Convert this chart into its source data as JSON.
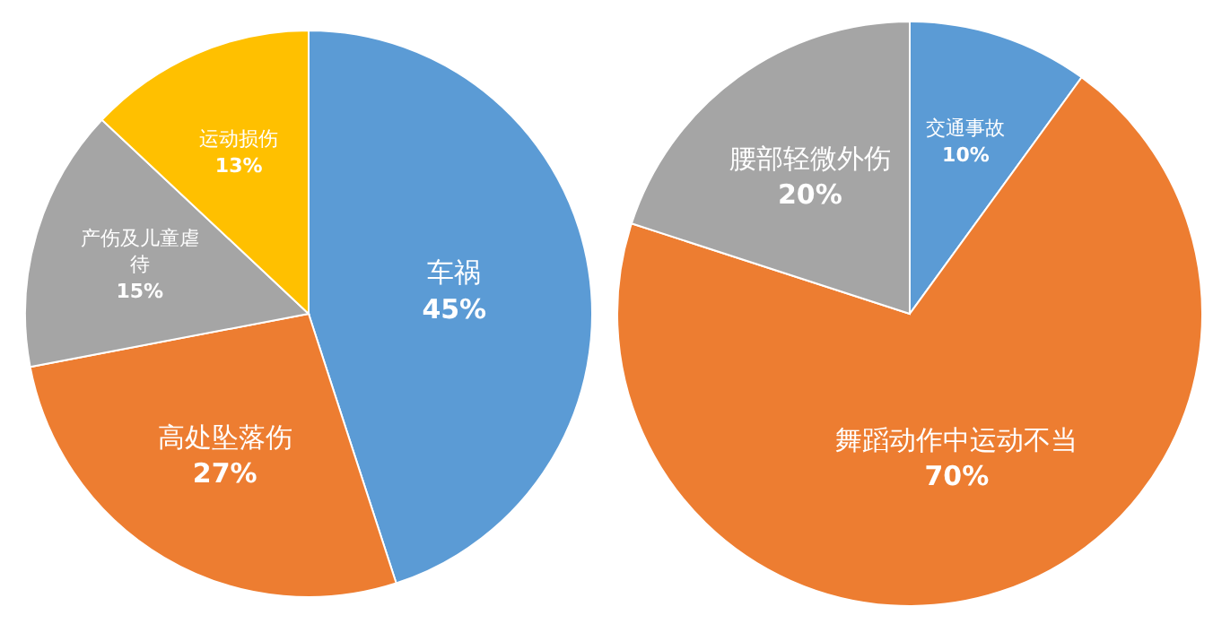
{
  "chart_data": [
    {
      "type": "pie",
      "categories": [
        "车祸",
        "高处坠落伤",
        "产伤及儿童虐待",
        "运动损伤"
      ],
      "values": [
        45,
        27,
        15,
        13
      ],
      "value_labels": [
        "45%",
        "27%",
        "15%",
        "13%"
      ],
      "colors": [
        "#5b9bd5",
        "#ed7d31",
        "#a5a5a5",
        "#ffc000"
      ]
    },
    {
      "type": "pie",
      "categories": [
        "交通事故",
        "舞蹈动作中运动不当",
        "腰部轻微外伤"
      ],
      "values": [
        10,
        70,
        20
      ],
      "value_labels": [
        "10%",
        "70%",
        "20%"
      ],
      "colors": [
        "#5b9bd5",
        "#ed7d31",
        "#a5a5a5"
      ]
    }
  ]
}
